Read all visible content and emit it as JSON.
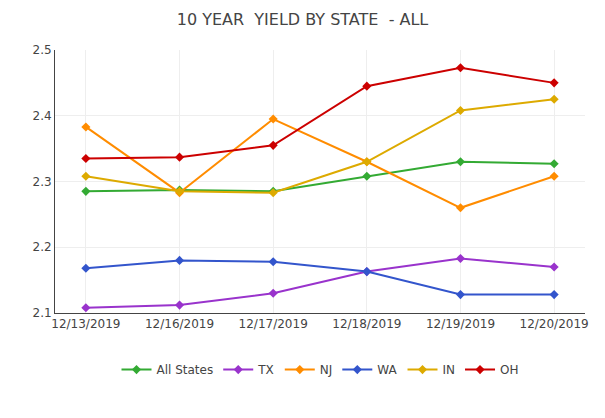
{
  "chart_data": {
    "type": "line",
    "title": "10 YEAR  YIELD BY STATE  - ALL",
    "categories": [
      "12/13/2019",
      "12/16/2019",
      "12/17/2019",
      "12/18/2019",
      "12/19/2019",
      "12/20/2019"
    ],
    "series": [
      {
        "name": "All States",
        "color": "#33aa33",
        "values": [
          2.285,
          2.287,
          2.285,
          2.308,
          2.33,
          2.327
        ]
      },
      {
        "name": "TX",
        "color": "#9933cc",
        "values": [
          2.108,
          2.112,
          2.13,
          2.163,
          2.183,
          2.17
        ]
      },
      {
        "name": "NJ",
        "color": "#ff8c00",
        "values": [
          2.383,
          2.283,
          2.395,
          2.33,
          2.26,
          2.308
        ]
      },
      {
        "name": "WA",
        "color": "#3355cc",
        "values": [
          2.168,
          2.18,
          2.178,
          2.163,
          2.128,
          2.128
        ]
      },
      {
        "name": "IN",
        "color": "#ddaa00",
        "values": [
          2.308,
          2.285,
          2.283,
          2.33,
          2.408,
          2.425
        ]
      },
      {
        "name": "OH",
        "color": "#cc0000",
        "values": [
          2.335,
          2.337,
          2.355,
          2.445,
          2.473,
          2.45
        ]
      }
    ],
    "marker": "diamond",
    "ylim": [
      2.1,
      2.5
    ],
    "yticks": [
      2.1,
      2.2,
      2.3,
      2.4,
      2.5
    ],
    "grid": true,
    "legend": "bottom"
  }
}
